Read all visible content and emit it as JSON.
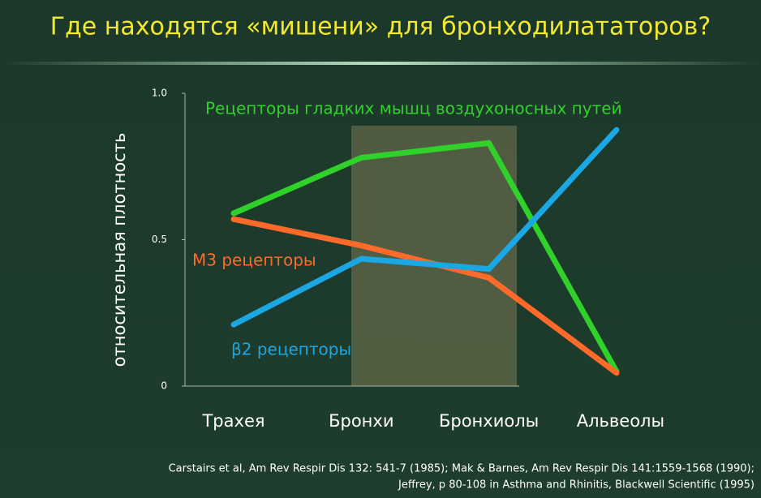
{
  "chart_data": {
    "type": "line",
    "title": "Где находятся «мишени» для бронходилататоров?",
    "y_label": "относительная плотность",
    "categories": [
      "Трахея",
      "Бронхи",
      "Бронхиолы",
      "Альвеолы"
    ],
    "series": [
      {
        "name": "Рецепторы гладких мышц воздухоносных путей",
        "color": "#2fd12a",
        "values": [
          0.59,
          0.78,
          0.83,
          0.05
        ]
      },
      {
        "name": "М3 рецепторы",
        "color": "#ff6a2a",
        "values": [
          0.57,
          0.48,
          0.37,
          0.045
        ]
      },
      {
        "name": "β2 рецепторы",
        "color": "#1ba6e4",
        "values": [
          0.21,
          0.435,
          0.4,
          0.875
        ]
      }
    ],
    "ylim": [
      0,
      1
    ],
    "yticks": [
      0,
      0.5,
      {
        "value": 1,
        "label": "1.0"
      }
    ],
    "footnote": [
      "Carstairs et al, Am Rev Respir Dis 132: 541-7 (1985); Mak & Barnes, Am Rev Respir Dis 141:1559-1568 (1990);",
      "Jeffrey, p 80-108 in Asthma and Rhinitis, Blackwell Scientific (1995)"
    ]
  }
}
